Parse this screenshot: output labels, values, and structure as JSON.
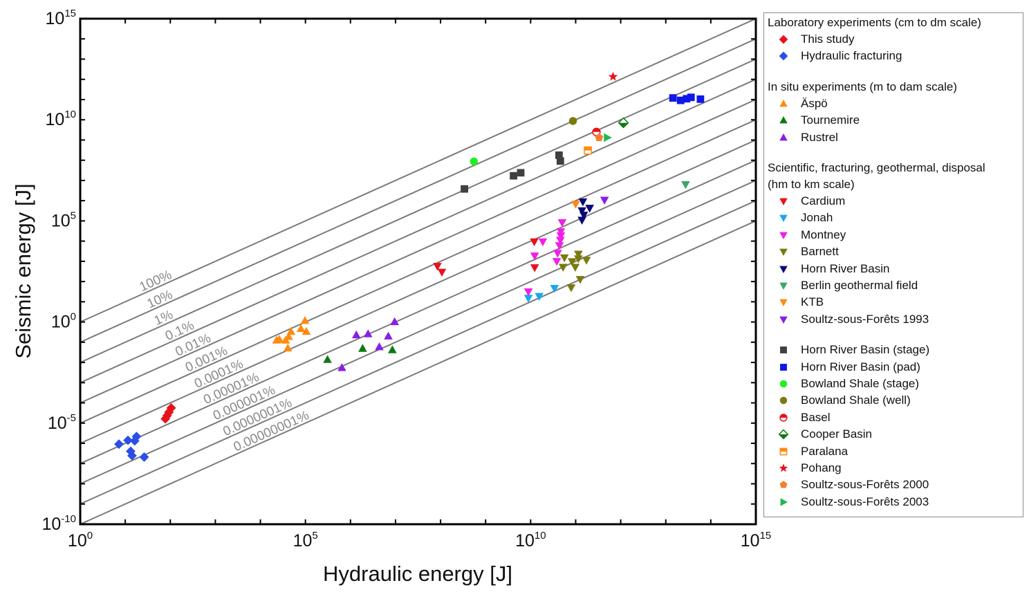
{
  "chart_data": {
    "type": "scatter",
    "title": "",
    "xlabel": "Hydraulic energy [J]",
    "ylabel": "Seismic energy [J]",
    "xscale": "log",
    "yscale": "log",
    "xlim_exp": [
      0,
      15
    ],
    "ylim_exp": [
      -10,
      15
    ],
    "x_tick_labels": [
      {
        "base": "10",
        "exp": "0",
        "value_exp": 0
      },
      {
        "base": "10",
        "exp": "5",
        "value_exp": 5
      },
      {
        "base": "10",
        "exp": "10",
        "value_exp": 10
      },
      {
        "base": "10",
        "exp": "15",
        "value_exp": 15
      }
    ],
    "y_tick_labels": [
      {
        "base": "10",
        "exp": "-10",
        "value_exp": -10
      },
      {
        "base": "10",
        "exp": "-5",
        "value_exp": -5
      },
      {
        "base": "10",
        "exp": "0",
        "value_exp": 0
      },
      {
        "base": "10",
        "exp": "5",
        "value_exp": 5
      },
      {
        "base": "10",
        "exp": "10",
        "value_exp": 10
      },
      {
        "base": "10",
        "exp": "15",
        "value_exp": 15
      }
    ],
    "grid": false,
    "legend_position": "right-outside",
    "efficiency_lines": [
      {
        "label": "100%",
        "log_ratio": 0
      },
      {
        "label": "10%",
        "log_ratio": -1
      },
      {
        "label": "1%",
        "log_ratio": -2
      },
      {
        "label": "0.1%",
        "log_ratio": -3
      },
      {
        "label": "0.01%",
        "log_ratio": -4
      },
      {
        "label": "0.001%",
        "log_ratio": -5
      },
      {
        "label": "0.0001%",
        "log_ratio": -6
      },
      {
        "label": "0.00001%",
        "log_ratio": -7
      },
      {
        "label": "0.000001%",
        "log_ratio": -8
      },
      {
        "label": "0.0000001%",
        "log_ratio": -9
      },
      {
        "label": "0.00000001%",
        "log_ratio": -10
      }
    ],
    "efficiency_label_anchor_log_x": [
      2.05,
      2.07,
      2.08,
      2.55,
      2.92,
      3.29,
      3.64,
      3.99,
      4.35,
      4.72,
      5.1
    ],
    "note": "x and y values below are log10 of energy in joules",
    "series": [
      {
        "name": "This study",
        "group": 0,
        "marker": "diamond",
        "color": "#e8121a",
        "points": [
          [
            2.02,
            -4.25
          ],
          [
            1.97,
            -4.46
          ],
          [
            1.93,
            -4.63
          ],
          [
            1.89,
            -4.79
          ]
        ]
      },
      {
        "name": "Hydraulic fracturing",
        "group": 0,
        "marker": "diamond",
        "color": "#2b4ee8",
        "points": [
          [
            0.86,
            -6.04
          ],
          [
            1.06,
            -5.85
          ],
          [
            1.21,
            -5.88
          ],
          [
            1.25,
            -5.66
          ],
          [
            1.12,
            -6.39
          ],
          [
            1.15,
            -6.61
          ],
          [
            1.42,
            -6.68
          ]
        ]
      },
      {
        "name": "Äspö",
        "group": 1,
        "marker": "triangle-up",
        "color": "#ff8a10",
        "points": [
          [
            4.99,
            0.07
          ],
          [
            4.9,
            -0.33
          ],
          [
            5.02,
            -0.47
          ],
          [
            4.68,
            -0.47
          ],
          [
            4.63,
            -0.72
          ],
          [
            4.42,
            -0.86
          ],
          [
            4.56,
            -0.9
          ],
          [
            4.61,
            -1.29
          ],
          [
            4.36,
            -0.9
          ]
        ]
      },
      {
        "name": "Tournemire",
        "group": 1,
        "marker": "triangle-up",
        "color": "#0e7a12",
        "points": [
          [
            5.49,
            -1.86
          ],
          [
            6.27,
            -1.31
          ],
          [
            6.93,
            -1.38
          ]
        ]
      },
      {
        "name": "Rustrel",
        "group": 1,
        "marker": "triangle-up",
        "color": "#8a1ee8",
        "points": [
          [
            6.13,
            -0.64
          ],
          [
            6.39,
            -0.59
          ],
          [
            6.98,
            0.01
          ],
          [
            6.84,
            -0.7
          ],
          [
            6.64,
            -1.23
          ],
          [
            5.81,
            -2.26
          ]
        ]
      },
      {
        "name": "Cardium",
        "group": 2,
        "marker": "triangle-down",
        "color": "#e8121a",
        "points": [
          [
            7.93,
            2.76
          ],
          [
            8.03,
            2.47
          ],
          [
            10.08,
            3.97
          ],
          [
            10.09,
            2.69
          ]
        ]
      },
      {
        "name": "Jonah",
        "group": 2,
        "marker": "triangle-down",
        "color": "#18a8f0",
        "points": [
          [
            9.95,
            1.18
          ],
          [
            10.19,
            1.27
          ],
          [
            10.53,
            1.67
          ]
        ]
      },
      {
        "name": "Montney",
        "group": 2,
        "marker": "triangle-down",
        "color": "#f020e8",
        "points": [
          [
            10.7,
            4.92
          ],
          [
            10.67,
            4.47
          ],
          [
            10.67,
            4.27
          ],
          [
            10.66,
            4.05
          ],
          [
            10.64,
            3.78
          ],
          [
            10.27,
            3.97
          ],
          [
            10.6,
            3.4
          ],
          [
            10.58,
            3.0
          ],
          [
            10.09,
            3.27
          ],
          [
            9.95,
            1.5
          ]
        ]
      },
      {
        "name": "Barnett",
        "group": 2,
        "marker": "triangle-down",
        "color": "#7a7a10",
        "points": [
          [
            10.75,
            3.18
          ],
          [
            11.06,
            3.36
          ],
          [
            11.06,
            3.13
          ],
          [
            10.92,
            2.99
          ],
          [
            11.24,
            3.06
          ],
          [
            10.72,
            2.71
          ],
          [
            10.99,
            2.71
          ],
          [
            11.1,
            2.11
          ],
          [
            10.9,
            1.7
          ]
        ]
      },
      {
        "name": "Horn River Basin",
        "group": 2,
        "marker": "triangle-down",
        "color": "#0a0a78",
        "points": [
          [
            11.16,
            5.95
          ],
          [
            11.31,
            5.63
          ],
          [
            11.14,
            5.51
          ],
          [
            11.18,
            5.29
          ],
          [
            11.14,
            5.04
          ]
        ]
      },
      {
        "name": "Berlin geothermal field",
        "group": 2,
        "marker": "triangle-down",
        "color": "#3aa86a",
        "points": [
          [
            13.44,
            6.8
          ]
        ]
      },
      {
        "name": "KTB",
        "group": 2,
        "marker": "triangle-down",
        "color": "#ff8a10",
        "points": [
          [
            11.0,
            5.83
          ]
        ]
      },
      {
        "name": "Soultz-sous-Forêts 1993",
        "group": 2,
        "marker": "triangle-down",
        "color": "#8a1ee8",
        "points": [
          [
            11.64,
            6.03
          ]
        ]
      },
      {
        "name": "Horn River Basin (stage)",
        "group": 3,
        "marker": "square",
        "color": "#404040",
        "points": [
          [
            8.53,
            6.58
          ],
          [
            9.62,
            7.23
          ],
          [
            9.78,
            7.38
          ],
          [
            10.63,
            8.25
          ],
          [
            10.66,
            7.96
          ]
        ]
      },
      {
        "name": "Horn River Basin (pad)",
        "group": 3,
        "marker": "square",
        "color": "#1018e8",
        "points": [
          [
            13.16,
            11.08
          ],
          [
            13.33,
            10.96
          ],
          [
            13.46,
            11.04
          ],
          [
            13.56,
            11.11
          ],
          [
            13.77,
            11.02
          ]
        ]
      },
      {
        "name": "Bowland Shale (stage)",
        "group": 3,
        "marker": "circle",
        "color": "#20f020",
        "points": [
          [
            8.74,
            7.94
          ]
        ]
      },
      {
        "name": "Bowland Shale (well)",
        "group": 3,
        "marker": "circle",
        "color": "#7a7a10",
        "points": [
          [
            10.94,
            9.94
          ]
        ]
      },
      {
        "name": "Basel",
        "group": 3,
        "marker": "circle-half",
        "color": "#e8121a",
        "points": [
          [
            11.46,
            9.4
          ]
        ]
      },
      {
        "name": "Cooper Basin",
        "group": 3,
        "marker": "diamond-half",
        "color": "#0e7a12",
        "points": [
          [
            12.06,
            9.85
          ]
        ]
      },
      {
        "name": "Paralana",
        "group": 3,
        "marker": "square-half",
        "color": "#ff8a10",
        "points": [
          [
            11.27,
            8.48
          ]
        ]
      },
      {
        "name": "Pohang",
        "group": 3,
        "marker": "star",
        "color": "#e8121a",
        "points": [
          [
            11.83,
            12.13
          ]
        ]
      },
      {
        "name": "Soultz-sous-Forêts 2000",
        "group": 3,
        "marker": "pentagon",
        "color": "#f08030",
        "points": [
          [
            11.52,
            9.12
          ]
        ]
      },
      {
        "name": "Soultz-sous-Forêts 2003",
        "group": 3,
        "marker": "triangle-right",
        "color": "#20b850",
        "points": [
          [
            11.7,
            9.12
          ]
        ]
      }
    ]
  },
  "legend": {
    "groups": [
      {
        "title_lines": [
          "Laboratory experiments (cm to dm scale)"
        ]
      },
      {
        "title_lines": [
          "In situ experiments (m to dam scale)"
        ]
      },
      {
        "title_lines": [
          "Scientific, fracturing, geothermal, disposal",
          "(hm to km scale)"
        ]
      },
      {
        "title_lines": []
      }
    ]
  }
}
